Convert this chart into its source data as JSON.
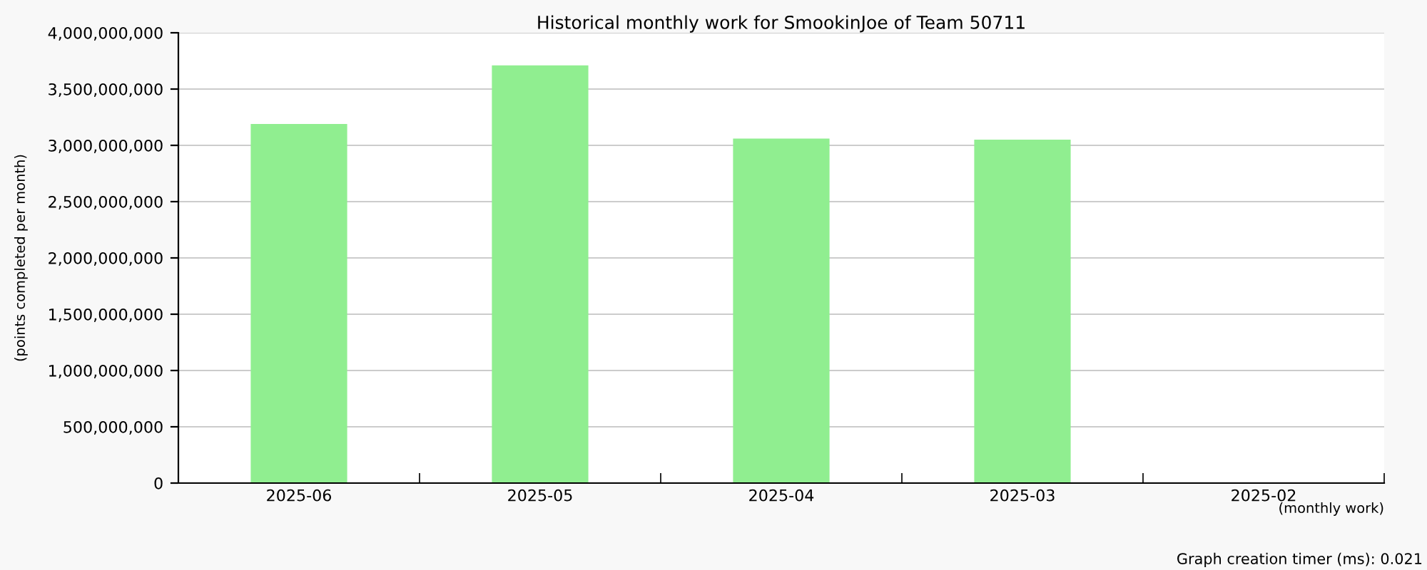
{
  "chart_data": {
    "type": "bar",
    "title": "Historical monthly work for SmookinJoe of Team 50711",
    "xlabel": "(monthly work)",
    "ylabel": "(points completed per month)",
    "categories": [
      "2025-06",
      "2025-05",
      "2025-04",
      "2025-03",
      "2025-02"
    ],
    "values": [
      3190000000,
      3710000000,
      3060000000,
      3050000000,
      null
    ],
    "color": "#90ee90",
    "ylim": [
      0,
      4000000000
    ],
    "yticks": [
      {
        "value": 0,
        "label": "0"
      },
      {
        "value": 500000000,
        "label": "500,000,000"
      },
      {
        "value": 1000000000,
        "label": "1,000,000,000"
      },
      {
        "value": 1500000000,
        "label": "1,500,000,000"
      },
      {
        "value": 2000000000,
        "label": "2,000,000,000"
      },
      {
        "value": 2500000000,
        "label": "2,500,000,000"
      },
      {
        "value": 3000000000,
        "label": "3,000,000,000"
      },
      {
        "value": 3500000000,
        "label": "3,500,000,000"
      },
      {
        "value": 4000000000,
        "label": "4,000,000,000"
      }
    ],
    "grid": "y",
    "annotations": [
      "Graph creation timer (ms): 0.021"
    ]
  }
}
